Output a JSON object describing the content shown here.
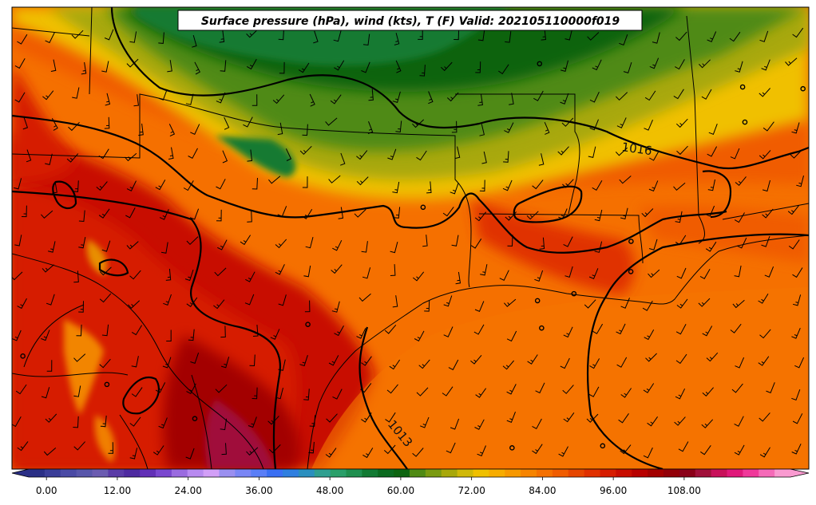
{
  "title": "Surface pressure (hPa), wind (kts), T (F) Valid: 202105110000f019",
  "colorbar": {
    "ticks": [
      "0.00",
      "12.00",
      "24.00",
      "36.00",
      "48.00",
      "60.00",
      "72.00",
      "84.00",
      "96.00",
      "108.00"
    ],
    "min": -3,
    "max": 126,
    "step": 3,
    "colors": [
      "#2a2f86",
      "#3a3d98",
      "#4a4aa5",
      "#5856ab",
      "#6b5cb1",
      "#5a3ba7",
      "#4e2aa0",
      "#6230b7",
      "#7a47cf",
      "#9a6be0",
      "#b88af0",
      "#d29ff7",
      "#9a8ff0",
      "#7a86f5",
      "#5a7ef7",
      "#3a6ff3",
      "#2f7fe0",
      "#2a8fbf",
      "#2f9f90",
      "#2a9f6a",
      "#1f8f4f",
      "#127a33",
      "#0b6a1f",
      "#0c6410",
      "#4f8a14",
      "#7a9a10",
      "#a8a80a",
      "#d0b808",
      "#f0c000",
      "#f7ac00",
      "#f79800",
      "#f78400",
      "#f57000",
      "#f05c00",
      "#e64600",
      "#e03000",
      "#d61c00",
      "#c80c00",
      "#b80000",
      "#a30000",
      "#920008",
      "#8a0018",
      "#a0103a",
      "#c8105a",
      "#e0187a",
      "#f0389a",
      "#f56ab8",
      "#f99ad0"
    ]
  },
  "contour_labels": [
    {
      "text": "1016"
    },
    {
      "text": "1013"
    }
  ],
  "icons": {
    "barbs": "wind-barb-icon",
    "calm": "calm-wind-circle-icon"
  }
}
